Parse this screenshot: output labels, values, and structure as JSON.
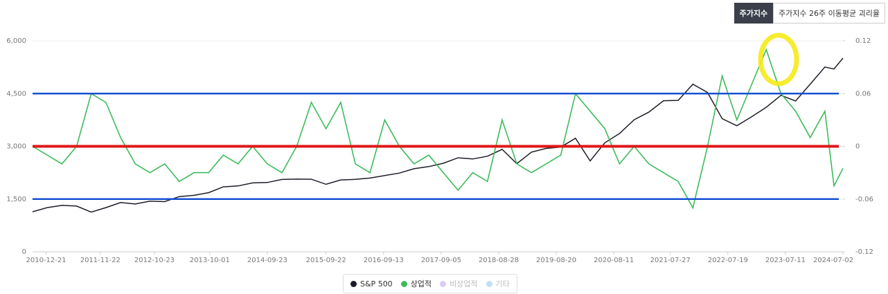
{
  "tabs": {
    "items": [
      "주가지수",
      "주가지수 26주 이동평균 괴리율"
    ],
    "active": 0
  },
  "chart_data": {
    "type": "line",
    "x": [
      "2010-09-28",
      "2010-12-28",
      "2011-03-29",
      "2011-06-28",
      "2011-09-27",
      "2011-12-27",
      "2012-03-27",
      "2012-06-26",
      "2012-09-25",
      "2012-12-25",
      "2013-03-26",
      "2013-06-25",
      "2013-09-24",
      "2013-12-24",
      "2014-03-25",
      "2014-06-24",
      "2014-09-23",
      "2014-12-23",
      "2015-03-24",
      "2015-06-23",
      "2015-09-22",
      "2015-12-22",
      "2016-03-22",
      "2016-06-21",
      "2016-09-20",
      "2016-12-20",
      "2017-03-21",
      "2017-06-20",
      "2017-09-19",
      "2017-12-19",
      "2018-03-20",
      "2018-06-19",
      "2018-09-18",
      "2018-12-18",
      "2019-03-19",
      "2019-06-18",
      "2019-09-17",
      "2019-12-17",
      "2020-03-17",
      "2020-06-16",
      "2020-09-15",
      "2020-12-15",
      "2021-03-16",
      "2021-06-15",
      "2021-09-14",
      "2021-12-14",
      "2022-03-15",
      "2022-06-14",
      "2022-09-13",
      "2022-12-13",
      "2023-03-14",
      "2023-06-13",
      "2023-09-12",
      "2023-12-12",
      "2024-03-12",
      "2024-05-07",
      "2024-07-02"
    ],
    "series": [
      {
        "name": "S&P 500",
        "color": "#1c1c28",
        "axis": "y",
        "values": [
          1140,
          1257,
          1320,
          1300,
          1130,
          1257,
          1400,
          1360,
          1440,
          1426,
          1569,
          1606,
          1681,
          1848,
          1872,
          1960,
          1972,
          2058,
          2067,
          2063,
          1920,
          2043,
          2059,
          2098,
          2168,
          2238,
          2362,
          2423,
          2519,
          2673,
          2640,
          2718,
          2913,
          2506,
          2834,
          2941,
          2976,
          3230,
          2584,
          3100,
          3363,
          3756,
          3972,
          4297,
          4307,
          4766,
          4530,
          3785,
          3585,
          3839,
          4109,
          4450,
          4288,
          4769,
          5254,
          5200,
          5509
        ]
      },
      {
        "name": "상업적",
        "color": "#3dbb5b",
        "axis": "y2",
        "values": [
          0.0,
          -0.01,
          -0.02,
          0.0,
          0.06,
          0.05,
          0.01,
          -0.02,
          -0.03,
          -0.02,
          -0.04,
          -0.03,
          -0.03,
          -0.01,
          -0.02,
          0.0,
          -0.02,
          -0.03,
          0.0,
          0.05,
          0.02,
          0.05,
          -0.02,
          -0.03,
          0.03,
          0.0,
          -0.02,
          -0.01,
          -0.03,
          -0.05,
          -0.03,
          -0.04,
          0.03,
          -0.02,
          -0.03,
          -0.02,
          -0.01,
          0.06,
          0.04,
          0.02,
          -0.02,
          0.0,
          -0.02,
          -0.03,
          -0.04,
          -0.07,
          0.0,
          0.08,
          0.03,
          0.07,
          0.11,
          0.06,
          0.04,
          0.01,
          0.04,
          -0.045,
          -0.025
        ]
      }
    ],
    "legend_inactive": [
      {
        "name": "비상업적",
        "color": "#dccbf7"
      },
      {
        "name": "기타",
        "color": "#bfe0f7"
      }
    ],
    "reference_lines": [
      {
        "axis": "y",
        "value": 4500,
        "color": "#1450d2"
      },
      {
        "axis": "y",
        "value": 1500,
        "color": "#1450d2"
      },
      {
        "axis": "y2",
        "value": 0,
        "color": "#e01818"
      }
    ],
    "xlim": [
      "2010-09-28",
      "2024-07-02"
    ],
    "xticks": [
      "2010-12-21",
      "2011-11-22",
      "2012-10-23",
      "2013-10-01",
      "2014-09-23",
      "2015-09-22",
      "2016-09-13",
      "2017-09-05",
      "2018-08-28",
      "2019-08-20",
      "2020-08-11",
      "2021-07-27",
      "2022-07-19",
      "2023-07-11",
      "2024-07-02"
    ],
    "ylim": [
      0,
      6000
    ],
    "yticks": [
      0,
      {
        "value": 1500,
        "label": "1,500"
      },
      {
        "value": 3000,
        "label": "3,000"
      },
      {
        "value": 4500,
        "label": "4,500"
      },
      {
        "value": 6000,
        "label": "6,000"
      }
    ],
    "y2lim": [
      -0.12,
      0.12
    ],
    "y2ticks": [
      -0.12,
      -0.06,
      0,
      0.06,
      0.12
    ],
    "grid": true
  }
}
